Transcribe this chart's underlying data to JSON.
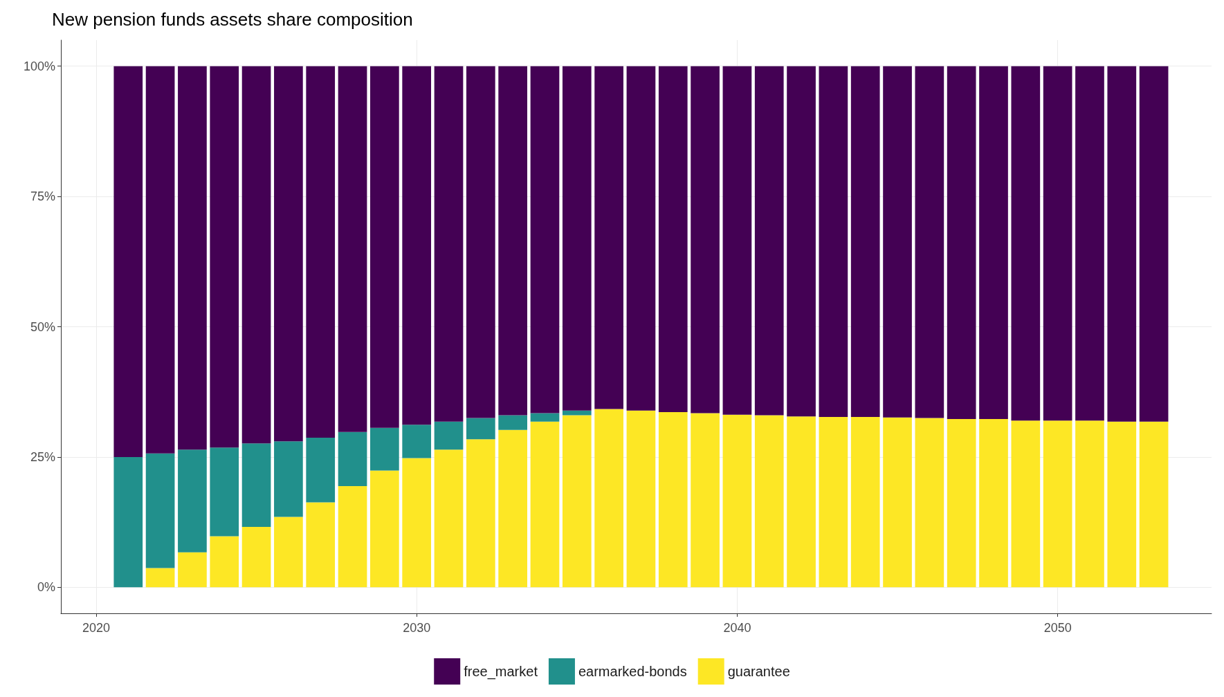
{
  "chart_data": {
    "type": "bar",
    "title": "New pension funds assets share composition",
    "stacked": true,
    "x": [
      2021,
      2022,
      2023,
      2024,
      2025,
      2026,
      2027,
      2028,
      2029,
      2030,
      2031,
      2032,
      2033,
      2034,
      2035,
      2036,
      2037,
      2038,
      2039,
      2040,
      2041,
      2042,
      2043,
      2044,
      2045,
      2046,
      2047,
      2048,
      2049,
      2050,
      2051,
      2052,
      2053
    ],
    "series": [
      {
        "name": "guarantee",
        "color": "#fde725",
        "values": [
          0,
          3.7,
          6.7,
          9.8,
          11.6,
          13.5,
          16.3,
          19.4,
          22.4,
          24.8,
          26.4,
          28.4,
          30.2,
          31.8,
          33.0,
          34.2,
          33.9,
          33.6,
          33.4,
          33.1,
          33.0,
          32.8,
          32.7,
          32.7,
          32.6,
          32.5,
          32.3,
          32.3,
          32.0,
          32.0,
          32.0,
          31.8,
          31.8
        ]
      },
      {
        "name": "earmarked-bonds",
        "color": "#21908c",
        "values": [
          25.0,
          22.0,
          19.7,
          17.0,
          16.0,
          14.5,
          12.4,
          10.4,
          8.2,
          6.4,
          5.4,
          4.1,
          2.8,
          1.6,
          0.9,
          0,
          0,
          0,
          0,
          0,
          0,
          0,
          0,
          0,
          0,
          0,
          0,
          0,
          0,
          0,
          0,
          0,
          0
        ]
      },
      {
        "name": "free_market",
        "color": "#440154",
        "values": [
          75.0,
          74.3,
          73.6,
          73.2,
          72.4,
          72.0,
          71.3,
          70.2,
          69.4,
          68.8,
          68.2,
          67.5,
          67.0,
          66.6,
          66.1,
          65.8,
          66.1,
          66.4,
          66.6,
          66.9,
          67.0,
          67.2,
          67.3,
          67.3,
          67.4,
          67.5,
          67.7,
          67.7,
          68.0,
          68.0,
          68.0,
          68.2,
          68.2
        ]
      }
    ],
    "xlim": [
      2018.9,
      2054.8
    ],
    "xticks": [
      2020,
      2030,
      2040,
      2050
    ],
    "ylim": [
      -5,
      105
    ],
    "yticks": [
      {
        "value": 0,
        "label": "0%"
      },
      {
        "value": 25,
        "label": "25%"
      },
      {
        "value": 50,
        "label": "50%"
      },
      {
        "value": 75,
        "label": "75%"
      },
      {
        "value": 100,
        "label": "100%"
      }
    ],
    "grid": true,
    "legend": "bottom"
  }
}
